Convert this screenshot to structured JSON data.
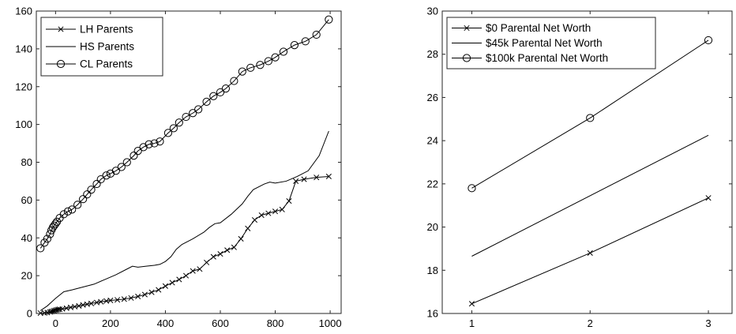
{
  "chart_data": [
    {
      "type": "line",
      "title": "",
      "xlabel": "",
      "ylabel": "",
      "xlim": [
        -70,
        1040
      ],
      "ylim": [
        0,
        160
      ],
      "xticks": [
        0,
        200,
        400,
        600,
        800,
        1000
      ],
      "yticks": [
        0,
        20,
        40,
        60,
        80,
        100,
        120,
        140,
        160
      ],
      "grid": false,
      "legend_position": "top-left",
      "series": [
        {
          "name": "LH Parents",
          "marker": "x",
          "x": [
            -55,
            -40,
            -30,
            -20,
            -15,
            -10,
            -5,
            0,
            5,
            10,
            15,
            25,
            40,
            55,
            70,
            85,
            100,
            115,
            130,
            150,
            165,
            185,
            200,
            225,
            250,
            275,
            300,
            325,
            350,
            375,
            400,
            425,
            450,
            475,
            500,
            525,
            550,
            575,
            600,
            625,
            650,
            675,
            700,
            725,
            750,
            775,
            800,
            825,
            850,
            875,
            905,
            950,
            995
          ],
          "y": [
            0.2,
            0.3,
            0.5,
            0.8,
            1.0,
            1.2,
            1.5,
            1.7,
            1.9,
            2.1,
            2.2,
            2.4,
            2.8,
            3.2,
            3.6,
            4.0,
            4.5,
            4.9,
            5.3,
            5.8,
            6.2,
            6.6,
            6.9,
            7.2,
            7.6,
            8.2,
            9.0,
            10.0,
            11.2,
            12.5,
            14.5,
            16.3,
            18.0,
            20.0,
            22.5,
            23.5,
            27.0,
            30.0,
            31.5,
            33.5,
            35.0,
            39.5,
            45.0,
            49.5,
            52.0,
            53.0,
            54.0,
            55.0,
            59.5,
            70.0,
            71.0,
            72.0,
            72.5
          ]
        },
        {
          "name": "HS Parents",
          "marker": "none",
          "x": [
            -55,
            -30,
            0,
            30,
            60,
            100,
            140,
            180,
            220,
            260,
            280,
            300,
            330,
            360,
            380,
            400,
            420,
            440,
            460,
            480,
            500,
            540,
            560,
            580,
            600,
            640,
            680,
            700,
            720,
            760,
            780,
            800,
            840,
            880,
            920,
            960,
            995
          ],
          "y": [
            1.5,
            4.0,
            8.0,
            11.5,
            12.5,
            14.0,
            15.5,
            18.0,
            20.5,
            23.5,
            25.0,
            24.5,
            25.0,
            25.5,
            26.0,
            27.5,
            30.0,
            34.0,
            36.5,
            38.0,
            39.5,
            43.0,
            45.5,
            47.5,
            48.0,
            52.5,
            58.0,
            62.0,
            65.5,
            68.5,
            69.5,
            69.0,
            70.0,
            72.5,
            75.5,
            83.5,
            96.5
          ]
        },
        {
          "name": "CL Parents",
          "marker": "o",
          "x": [
            -55,
            -40,
            -30,
            -20,
            -15,
            -10,
            -5,
            0,
            5,
            15,
            30,
            45,
            60,
            80,
            100,
            115,
            130,
            150,
            165,
            185,
            200,
            220,
            240,
            260,
            285,
            300,
            320,
            340,
            360,
            380,
            410,
            430,
            450,
            475,
            500,
            520,
            550,
            575,
            600,
            620,
            650,
            680,
            710,
            745,
            775,
            800,
            830,
            870,
            910,
            950,
            995
          ],
          "y": [
            34.5,
            37.5,
            39.5,
            42.0,
            44.0,
            45.5,
            46.5,
            47.5,
            48.5,
            50.5,
            52.5,
            54.0,
            55.0,
            57.5,
            60.5,
            63.0,
            65.5,
            68.5,
            71.0,
            73.0,
            74.0,
            75.5,
            77.5,
            80.0,
            83.5,
            86.0,
            88.0,
            89.5,
            90.0,
            91.0,
            95.5,
            98.0,
            101.0,
            104.0,
            106.0,
            108.0,
            112.0,
            115.0,
            117.0,
            119.0,
            123.0,
            128.0,
            130.0,
            131.5,
            133.5,
            135.5,
            138.5,
            142.0,
            144.0,
            147.5,
            155.5
          ]
        }
      ]
    },
    {
      "type": "line",
      "title": "",
      "xlabel": "",
      "ylabel": "",
      "xlim": [
        0.75,
        3.2
      ],
      "ylim": [
        16,
        30
      ],
      "xticks": [
        1,
        2,
        3
      ],
      "yticks": [
        16,
        18,
        20,
        22,
        24,
        26,
        28,
        30
      ],
      "grid": false,
      "legend_position": "top-left",
      "series": [
        {
          "name": "$0 Parental Net Worth",
          "marker": "x",
          "x": [
            1,
            2,
            3
          ],
          "y": [
            16.45,
            18.8,
            21.35
          ]
        },
        {
          "name": "$45k Parental Net Worth",
          "marker": "none",
          "x": [
            1,
            3
          ],
          "y": [
            18.65,
            24.25
          ]
        },
        {
          "name": "$100k Parental Net Worth",
          "marker": "o",
          "x": [
            1,
            2,
            3
          ],
          "y": [
            21.8,
            25.05,
            28.65
          ]
        }
      ]
    }
  ]
}
